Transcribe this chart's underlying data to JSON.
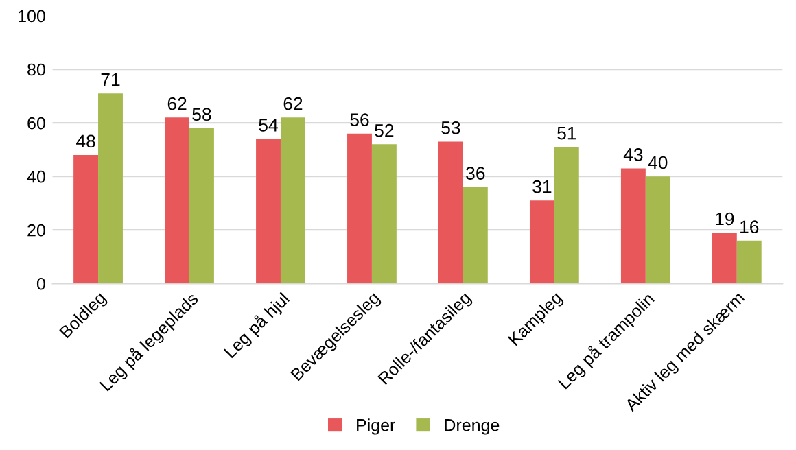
{
  "chart_data": {
    "type": "bar",
    "categories": [
      "Boldleg",
      "Leg på legeplads",
      "Leg på hjul",
      "Bevægelsesleg",
      "Rolle-/fantasileg",
      "Kampleg",
      "Leg på trampolin",
      "Aktiv leg med skærm"
    ],
    "series": [
      {
        "name": "Piger",
        "color": "#e8575a",
        "values": [
          48,
          62,
          54,
          56,
          53,
          31,
          43,
          19
        ]
      },
      {
        "name": "Drenge",
        "color": "#a5b94f",
        "values": [
          71,
          58,
          62,
          52,
          36,
          51,
          40,
          16
        ]
      }
    ],
    "ylim": [
      0,
      100
    ],
    "yticks": [
      0,
      20,
      40,
      60,
      80,
      100
    ],
    "grid": "y",
    "legend": "bottom",
    "data_labels": true
  }
}
